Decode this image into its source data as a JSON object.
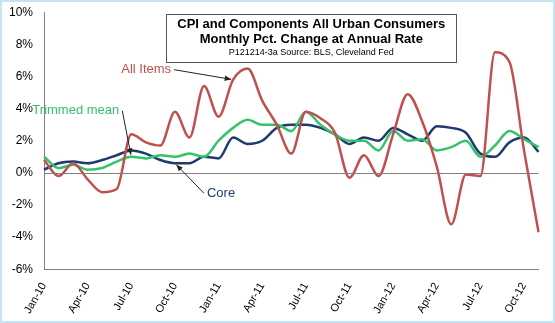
{
  "chart_data": {
    "type": "line",
    "title": [
      "CPI and Components All Urban Consumers",
      "Monthly Pct. Change at Annual Rate"
    ],
    "subtitle": "P121214-3a Source: BLS, Cleveland Fed",
    "categories": [
      "Jan-10",
      null,
      null,
      "Apr-10",
      null,
      null,
      "Jul-10",
      null,
      null,
      "Oct-10",
      null,
      null,
      "Jan-11",
      null,
      null,
      "Apr-11",
      null,
      null,
      "Jul-11",
      null,
      null,
      "Oct-11",
      null,
      null,
      "Jan-12",
      null,
      null,
      "Apr-12",
      null,
      null,
      "Jul-12",
      null,
      null,
      "Oct-12",
      null
    ],
    "series": [
      {
        "name": "All Items",
        "color": "#c0504d",
        "marker": "none",
        "line_style": "solid",
        "values": [
          0.8,
          -0.2,
          0.6,
          -0.4,
          -1.2,
          -1.0,
          2.4,
          1.9,
          1.7,
          3.8,
          2.2,
          5.4,
          3.5,
          5.8,
          6.5,
          4.5,
          3.0,
          1.2,
          3.8,
          3.4,
          2.5,
          -0.3,
          1.1,
          -0.2,
          2.4,
          4.9,
          3.2,
          0.4,
          -3.2,
          -0.1,
          -0.2,
          7.5,
          6.9,
          1.4,
          -3.7
        ]
      },
      {
        "name": "Trimmed mean",
        "color": "#33c36a",
        "marker": "none",
        "line_style": "solid",
        "values": [
          1.0,
          0.3,
          0.5,
          0.2,
          0.3,
          0.7,
          1.0,
          0.9,
          1.1,
          1.0,
          1.2,
          1.0,
          2.0,
          2.8,
          3.3,
          3.0,
          3.0,
          2.6,
          3.8,
          3.0,
          2.4,
          2.0,
          2.0,
          1.4,
          2.6,
          2.0,
          2.1,
          1.4,
          1.6,
          2.0,
          1.0,
          1.7,
          2.6,
          2.1,
          1.6
        ]
      },
      {
        "name": "Core",
        "color": "#1f3a6e",
        "marker": "none",
        "line_style": "solid",
        "values": [
          0.2,
          0.6,
          0.7,
          0.6,
          0.8,
          1.1,
          1.4,
          1.2,
          0.8,
          0.6,
          0.6,
          1.0,
          0.9,
          2.2,
          1.8,
          2.0,
          2.8,
          3.0,
          3.0,
          2.8,
          2.4,
          1.8,
          2.2,
          2.0,
          2.8,
          2.4,
          2.0,
          2.9,
          2.8,
          2.5,
          1.2,
          1.0,
          1.9,
          2.2,
          1.3
        ]
      }
    ],
    "ylim": [
      -6,
      10
    ],
    "yticks": [
      {
        "value": -6,
        "label": "-6%"
      },
      {
        "value": -4,
        "label": "-4%"
      },
      {
        "value": -2,
        "label": "-2%"
      },
      {
        "value": 0,
        "label": "0%"
      },
      {
        "value": 2,
        "label": "2%"
      },
      {
        "value": 4,
        "label": "4%"
      },
      {
        "value": 6,
        "label": "6%"
      },
      {
        "value": 8,
        "label": "8%"
      },
      {
        "value": 10,
        "label": "10%"
      }
    ],
    "grid": false
  }
}
